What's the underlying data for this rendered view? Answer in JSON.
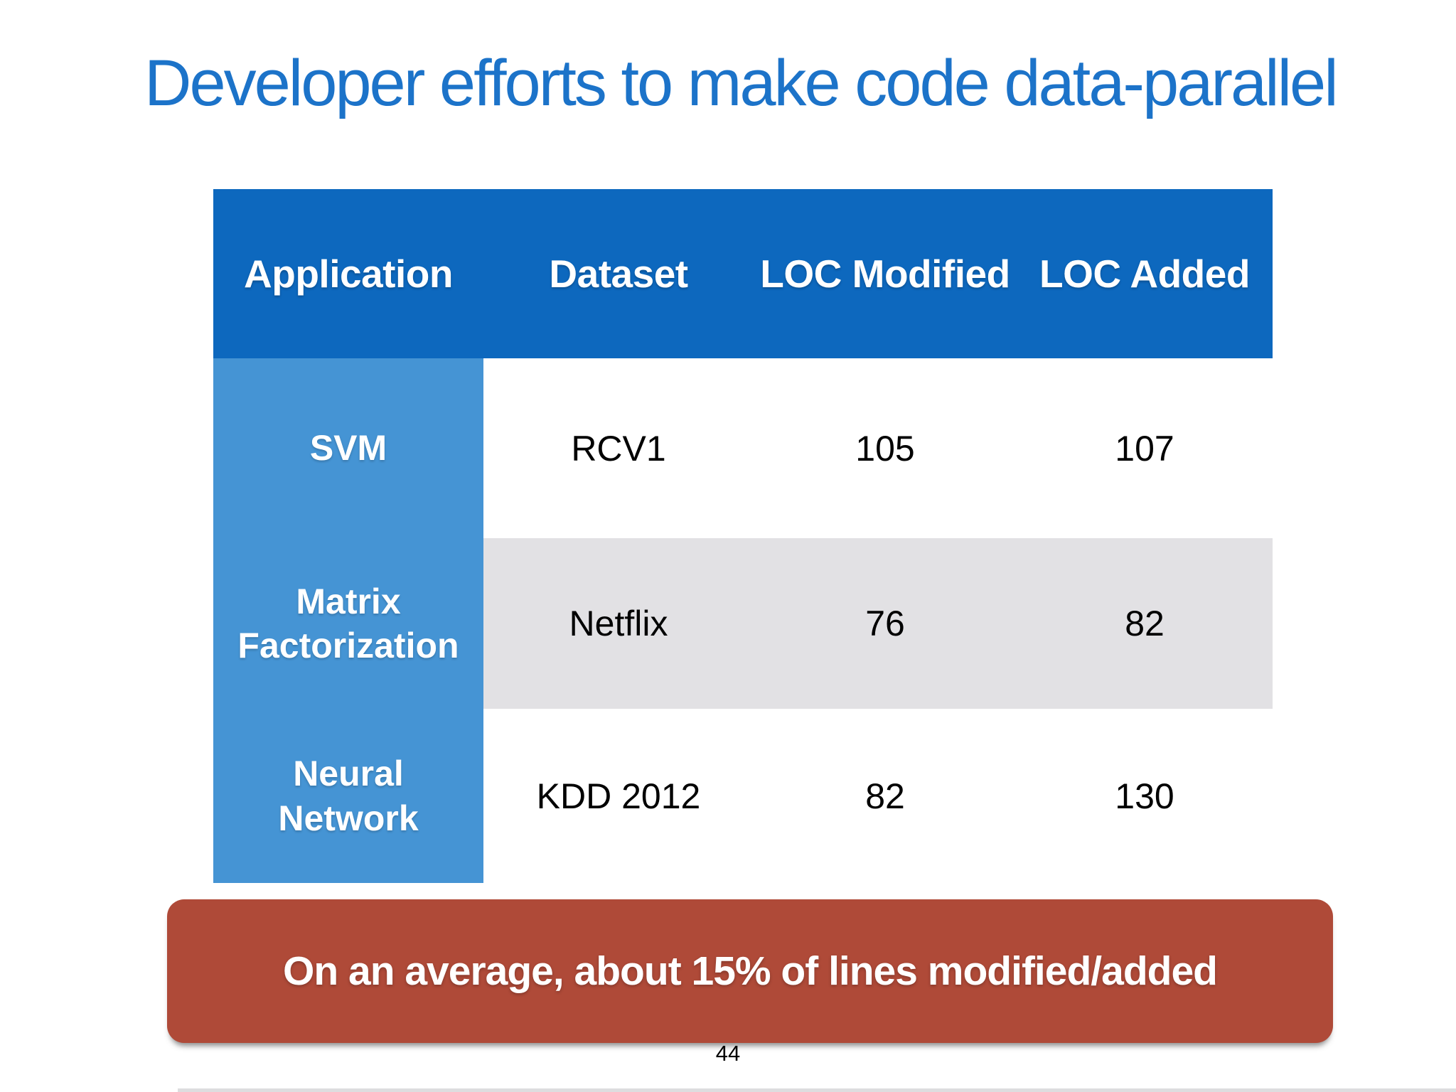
{
  "title": "Developer efforts to make code data-parallel",
  "table": {
    "headers": [
      "Application",
      "Dataset",
      "LOC Modified",
      "LOC Added"
    ],
    "rows": [
      [
        "SVM",
        "RCV1",
        "105",
        "107"
      ],
      [
        "Matrix Factorization",
        "Netflix",
        "76",
        "82"
      ],
      [
        "Neural Network",
        "KDD 2012",
        "82",
        "130"
      ]
    ]
  },
  "callout": "On an average, about 15% of lines modified/added",
  "page_number": "44",
  "colors": {
    "title_blue": "#1C73C9",
    "header_blue": "#0D68BE",
    "application_column_blue": "#4594D4",
    "alt_row_gray": "#E2E1E4",
    "callout_red": "#AF4A38"
  }
}
